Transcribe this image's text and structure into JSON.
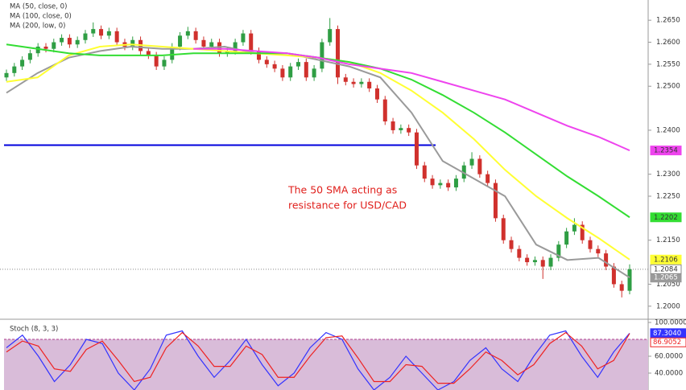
{
  "chart_data": [
    {
      "type": "candlestick",
      "legend": [
        "MA (50, close, 0)",
        "MA (100, close, 0)",
        "MA (200, low, 0)"
      ],
      "annotation": [
        "The 50 SMA acting as",
        "resistance for USD/CAD"
      ],
      "open": [
        1.252,
        1.253,
        1.2545,
        1.256,
        1.2575,
        1.259,
        1.2585,
        1.26,
        1.261,
        1.2595,
        1.2605,
        1.262,
        1.263,
        1.2615,
        1.2625,
        1.26,
        1.259,
        1.2605,
        1.258,
        1.257,
        1.2545,
        1.256,
        1.259,
        1.2615,
        1.2625,
        1.2605,
        1.259,
        1.26,
        1.2575,
        1.258,
        1.26,
        1.262,
        1.258,
        1.256,
        1.255,
        1.254,
        1.252,
        1.2545,
        1.2555,
        1.252,
        1.254,
        1.26,
        1.263,
        1.252,
        1.251,
        1.2505,
        1.251,
        1.2495,
        1.247,
        1.242,
        1.24,
        1.2405,
        1.2395,
        1.232,
        1.229,
        1.2275,
        1.228,
        1.227,
        1.229,
        1.232,
        1.2335,
        1.23,
        1.228,
        1.22,
        1.215,
        1.213,
        1.211,
        1.21,
        1.2105,
        1.209,
        1.211,
        1.214,
        1.217,
        1.2185,
        1.215,
        1.213,
        1.212,
        1.209,
        1.205,
        1.2035
      ],
      "high": [
        1.2538,
        1.2553,
        1.2568,
        1.2583,
        1.2598,
        1.2598,
        1.2608,
        1.2618,
        1.2618,
        1.2613,
        1.2628,
        1.2645,
        1.2638,
        1.2633,
        1.2633,
        1.2608,
        1.2613,
        1.2613,
        1.2588,
        1.2578,
        1.2568,
        1.2598,
        1.2623,
        1.2635,
        1.2633,
        1.2613,
        1.2608,
        1.2608,
        1.2588,
        1.2608,
        1.2628,
        1.2628,
        1.2588,
        1.2568,
        1.2558,
        1.2548,
        1.2553,
        1.2563,
        1.2563,
        1.2548,
        1.2608,
        1.2655,
        1.2638,
        1.2528,
        1.2518,
        1.2518,
        1.2518,
        1.2503,
        1.2478,
        1.2428,
        1.2413,
        1.2413,
        1.2403,
        1.2328,
        1.2298,
        1.2288,
        1.2288,
        1.2298,
        1.2328,
        1.235,
        1.2343,
        1.2308,
        1.2288,
        1.2208,
        1.2158,
        1.2138,
        1.2118,
        1.2113,
        1.2113,
        1.2118,
        1.2148,
        1.2178,
        1.22,
        1.2193,
        1.2158,
        1.2138,
        1.2128,
        1.2098,
        1.2058,
        1.2095
      ],
      "low": [
        1.2512,
        1.2522,
        1.2537,
        1.2552,
        1.2567,
        1.2577,
        1.2577,
        1.2592,
        1.2587,
        1.2587,
        1.2597,
        1.2612,
        1.2607,
        1.2607,
        1.2592,
        1.2582,
        1.2582,
        1.2572,
        1.2562,
        1.2537,
        1.2537,
        1.2552,
        1.2582,
        1.2607,
        1.2597,
        1.2582,
        1.2582,
        1.2567,
        1.2567,
        1.2572,
        1.2592,
        1.2572,
        1.2552,
        1.2542,
        1.2532,
        1.2512,
        1.2512,
        1.2537,
        1.2512,
        1.2512,
        1.2532,
        1.2592,
        1.2505,
        1.2502,
        1.2497,
        1.2497,
        1.2487,
        1.2462,
        1.2412,
        1.2392,
        1.2392,
        1.2387,
        1.2312,
        1.2282,
        1.2267,
        1.2267,
        1.2262,
        1.2262,
        1.2282,
        1.2312,
        1.2292,
        1.2272,
        1.2192,
        1.2142,
        1.2122,
        1.2102,
        1.2092,
        1.2092,
        1.2062,
        1.2082,
        1.2102,
        1.2132,
        1.2162,
        1.2142,
        1.2122,
        1.2112,
        1.2082,
        1.2042,
        1.202,
        1.2027
      ],
      "close": [
        1.253,
        1.2545,
        1.256,
        1.2575,
        1.259,
        1.2585,
        1.26,
        1.261,
        1.2595,
        1.2605,
        1.262,
        1.263,
        1.2615,
        1.2625,
        1.26,
        1.259,
        1.2605,
        1.258,
        1.257,
        1.2545,
        1.256,
        1.259,
        1.2615,
        1.2625,
        1.2605,
        1.259,
        1.26,
        1.2575,
        1.258,
        1.26,
        1.262,
        1.258,
        1.256,
        1.255,
        1.254,
        1.252,
        1.2545,
        1.2555,
        1.252,
        1.254,
        1.26,
        1.263,
        1.252,
        1.251,
        1.2505,
        1.251,
        1.2495,
        1.247,
        1.242,
        1.24,
        1.2405,
        1.2395,
        1.232,
        1.229,
        1.2275,
        1.228,
        1.227,
        1.229,
        1.232,
        1.2335,
        1.23,
        1.228,
        1.22,
        1.215,
        1.213,
        1.211,
        1.21,
        1.2105,
        1.209,
        1.211,
        1.214,
        1.217,
        1.2185,
        1.215,
        1.213,
        1.212,
        1.209,
        1.205,
        1.2035,
        1.2084
      ],
      "up_color": "#2f9e44",
      "down_color": "#d0312d",
      "series": [
        {
          "color": "#9a9a9a",
          "values": [
            1.2485,
            1.253,
            1.2565,
            1.258,
            1.259,
            1.2585,
            1.2585,
            1.259,
            1.2575,
            1.2575,
            1.256,
            1.2545,
            1.252,
            1.244,
            1.233,
            1.229,
            1.225,
            1.214,
            1.2105,
            1.211,
            1.2065
          ],
          "last_value": {
            "value": 1.2065,
            "label": "1.2065"
          }
        },
        {
          "color": "#ffff33",
          "values": [
            1.251,
            1.252,
            1.257,
            1.259,
            1.2595,
            1.259,
            1.2585,
            1.258,
            1.2575,
            1.257,
            1.2565,
            1.2555,
            1.253,
            1.249,
            1.244,
            1.238,
            1.231,
            1.225,
            1.22,
            1.2155,
            1.2106
          ],
          "last_value": {
            "value": 1.2106,
            "label": "1.2106"
          }
        },
        {
          "color": "#33dd33",
          "values": [
            1.2595,
            1.2585,
            1.2575,
            1.257,
            1.257,
            1.257,
            1.2575,
            1.2575,
            1.2575,
            1.2575,
            1.2565,
            1.2555,
            1.254,
            1.2515,
            1.248,
            1.244,
            1.2395,
            1.2345,
            1.2295,
            1.225,
            1.2202
          ],
          "last_value": {
            "value": 1.2202,
            "label": "1.2202"
          }
        },
        {
          "color": "#ee44ee",
          "values": [
            null,
            null,
            null,
            null,
            null,
            null,
            1.2585,
            1.2585,
            1.258,
            1.2575,
            1.2565,
            1.255,
            1.254,
            1.253,
            1.251,
            1.249,
            1.247,
            1.244,
            1.241,
            1.2385,
            1.2354
          ],
          "last_value": {
            "value": 1.2354,
            "label": "1.2354"
          }
        }
      ],
      "last_price": {
        "value": 1.2084,
        "label": "1.2084"
      },
      "hline": {
        "value": 1.2366,
        "color": "#0000dd"
      },
      "ylim": [
        1.1974,
        1.2696
      ],
      "yticks": [
        {
          "value": 1.265,
          "label": "1.2650"
        },
        {
          "value": 1.26,
          "label": "1.2600"
        },
        {
          "value": 1.255,
          "label": "1.2550"
        },
        {
          "value": 1.25,
          "label": "1.2500"
        },
        {
          "value": 1.24,
          "label": "1.2400"
        },
        {
          "value": 1.23,
          "label": "1.2300"
        },
        {
          "value": 1.225,
          "label": "1.2250"
        },
        {
          "value": 1.215,
          "label": "1.2150"
        },
        {
          "value": 1.205,
          "label": "1.2050"
        },
        {
          "value": 1.2,
          "label": "1.2000"
        }
      ]
    },
    {
      "type": "line",
      "title": "Stoch (8, 3, 3)",
      "band_color": "#d9bcd9",
      "levels": [
        80
      ],
      "series": [
        {
          "color": "#3333ff",
          "values": [
            70,
            85,
            60,
            30,
            50,
            80,
            75,
            40,
            20,
            45,
            85,
            90,
            60,
            35,
            55,
            80,
            50,
            25,
            40,
            70,
            88,
            80,
            45,
            20,
            35,
            60,
            40,
            20,
            30,
            55,
            70,
            45,
            30,
            60,
            85,
            90,
            60,
            35,
            65,
            87.3
          ],
          "last_value": {
            "value": 87.304,
            "label": "87.3040"
          }
        },
        {
          "color": "#ee2222",
          "values": [
            65,
            78,
            72,
            45,
            42,
            68,
            78,
            55,
            30,
            35,
            70,
            88,
            72,
            48,
            48,
            72,
            62,
            35,
            35,
            60,
            82,
            84,
            58,
            30,
            30,
            50,
            48,
            28,
            28,
            45,
            65,
            55,
            38,
            50,
            75,
            88,
            72,
            45,
            55,
            86.9
          ],
          "last_value": {
            "value": 86.9052,
            "label": "86.9052"
          }
        }
      ],
      "ylim": [
        20,
        100
      ],
      "yticks": [
        {
          "value": 100,
          "label": "100.0000"
        },
        {
          "value": 60,
          "label": "60.0000"
        },
        {
          "value": 40,
          "label": "40.0000"
        }
      ]
    }
  ]
}
